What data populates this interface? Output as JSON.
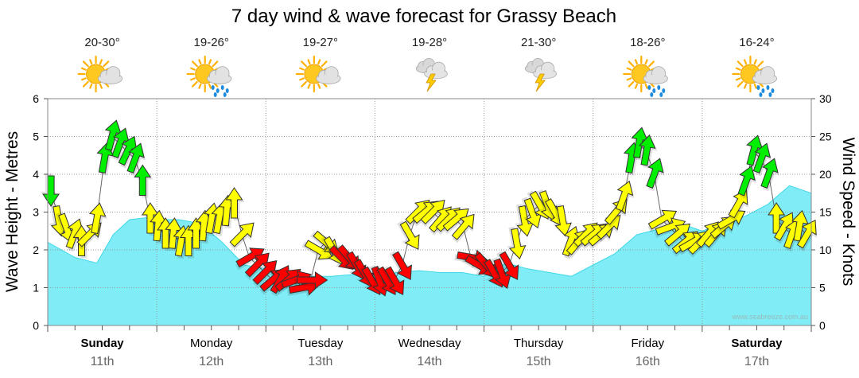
{
  "chart_data": {
    "type": "area",
    "title": "7 day wind & wave forecast for Grassy Beach",
    "y_left_label": "Wave Height - Metres",
    "y_right_label": "Wind Speed - Knots",
    "y_left_range": [
      0,
      6
    ],
    "y_right_range": [
      0,
      30
    ],
    "y_left_ticks": [
      "0",
      "1",
      "2",
      "3",
      "4",
      "5",
      "6"
    ],
    "y_right_ticks": [
      "0",
      "5",
      "10",
      "15",
      "20",
      "25",
      "30"
    ],
    "x_range_days": [
      0,
      7
    ],
    "days": [
      {
        "name": "Sunday",
        "date": "11th",
        "bold": true,
        "temp": "20-30°",
        "icon": "sun-cloud-icon"
      },
      {
        "name": "Monday",
        "date": "12th",
        "bold": false,
        "temp": "19-26°",
        "icon": "sun-rain-icon"
      },
      {
        "name": "Tuesday",
        "date": "13th",
        "bold": false,
        "temp": "19-27°",
        "icon": "sun-cloud-icon"
      },
      {
        "name": "Wednesday",
        "date": "14th",
        "bold": false,
        "temp": "19-28°",
        "icon": "storm-icon"
      },
      {
        "name": "Thursday",
        "date": "15th",
        "bold": false,
        "temp": "21-30°",
        "icon": "storm-icon"
      },
      {
        "name": "Friday",
        "date": "16th",
        "bold": false,
        "temp": "18-26°",
        "icon": "sun-rain-icon"
      },
      {
        "name": "Saturday",
        "date": "17th",
        "bold": true,
        "temp": "16-24°",
        "icon": "sun-rain-icon"
      }
    ],
    "wave_series": {
      "name": "Wave Height",
      "x_days": [
        0,
        0.25,
        0.45,
        0.6,
        0.75,
        0.9,
        1.0,
        1.2,
        1.4,
        1.6,
        1.8,
        2.0,
        2.2,
        2.4,
        2.6,
        2.8,
        3.0,
        3.2,
        3.4,
        3.6,
        3.8,
        4.0,
        4.2,
        4.4,
        4.6,
        4.8,
        5.0,
        5.2,
        5.4,
        5.6,
        5.8,
        6.0,
        6.2,
        6.4,
        6.6,
        6.8,
        7.0
      ],
      "y_metres": [
        2.2,
        1.8,
        1.65,
        2.4,
        2.8,
        2.85,
        2.8,
        2.8,
        2.7,
        2.2,
        1.6,
        1.5,
        1.4,
        1.3,
        1.3,
        1.35,
        1.3,
        1.4,
        1.45,
        1.4,
        1.4,
        1.3,
        1.65,
        1.5,
        1.4,
        1.3,
        1.6,
        1.9,
        2.4,
        2.55,
        2.7,
        2.5,
        2.7,
        2.9,
        3.2,
        3.7,
        3.5
      ]
    },
    "wind_series": {
      "name": "Wind Speed",
      "x_days": [
        0.03,
        0.1,
        0.17,
        0.24,
        0.31,
        0.38,
        0.45,
        0.52,
        0.59,
        0.66,
        0.73,
        0.8,
        0.87,
        0.94,
        1.01,
        1.08,
        1.15,
        1.22,
        1.29,
        1.36,
        1.43,
        1.5,
        1.57,
        1.64,
        1.71,
        1.78,
        1.85,
        1.92,
        1.99,
        2.06,
        2.13,
        2.2,
        2.27,
        2.34,
        2.41,
        2.48,
        2.55,
        2.62,
        2.69,
        2.76,
        2.83,
        2.9,
        2.97,
        3.04,
        3.11,
        3.18,
        3.25,
        3.32,
        3.39,
        3.46,
        3.53,
        3.6,
        3.67,
        3.74,
        3.81,
        3.88,
        3.95,
        4.02,
        4.09,
        4.16,
        4.23,
        4.3,
        4.37,
        4.44,
        4.51,
        4.58,
        4.65,
        4.72,
        4.79,
        4.86,
        4.93,
        5.0,
        5.07,
        5.14,
        5.21,
        5.28,
        5.35,
        5.42,
        5.49,
        5.56,
        5.63,
        5.7,
        5.77,
        5.84,
        5.91,
        5.98,
        6.05,
        6.12,
        6.19,
        6.26,
        6.33,
        6.4,
        6.47,
        6.54,
        6.61,
        6.68,
        6.75,
        6.82,
        6.89,
        6.96
      ],
      "y_knots": [
        18,
        14,
        13,
        12,
        11,
        12,
        14,
        22,
        25,
        24,
        23,
        22,
        19,
        14,
        13,
        12,
        12,
        11,
        11,
        12,
        13,
        14,
        14,
        15,
        16,
        12,
        9,
        8,
        7,
        6,
        6,
        6,
        6,
        5,
        6,
        10,
        11,
        10,
        9,
        9,
        8,
        7,
        6,
        6,
        6,
        6,
        8,
        12,
        15,
        15,
        15,
        14,
        14,
        14,
        13,
        9,
        8,
        8,
        7,
        7,
        8,
        11,
        14,
        15,
        16,
        16,
        15,
        14,
        11,
        11,
        12,
        12,
        12,
        13,
        15,
        17,
        22,
        24,
        23,
        20,
        14,
        13,
        12,
        11,
        11,
        11,
        12,
        12,
        13,
        14,
        16,
        19,
        23,
        22,
        20,
        14,
        13,
        12,
        13,
        12
      ],
      "direction_deg": [
        180,
        170,
        160,
        20,
        0,
        45,
        10,
        10,
        15,
        20,
        25,
        20,
        0,
        0,
        5,
        0,
        5,
        10,
        0,
        0,
        5,
        10,
        10,
        5,
        0,
        45,
        60,
        45,
        45,
        50,
        30,
        50,
        70,
        80,
        90,
        120,
        130,
        150,
        135,
        140,
        150,
        150,
        150,
        160,
        150,
        150,
        150,
        150,
        45,
        50,
        45,
        40,
        45,
        50,
        40,
        100,
        120,
        140,
        150,
        160,
        150,
        170,
        170,
        160,
        150,
        160,
        150,
        170,
        20,
        40,
        45,
        50,
        50,
        45,
        40,
        20,
        10,
        10,
        10,
        20,
        60,
        70,
        50,
        50,
        60,
        45,
        40,
        40,
        50,
        60,
        30,
        20,
        15,
        20,
        20,
        0,
        30,
        20,
        10,
        30
      ],
      "color_bands": [
        {
          "max_knots": 10,
          "color": "#ff0000"
        },
        {
          "max_knots": 18,
          "color": "#ffff00"
        },
        {
          "max_knots": 30,
          "color": "#00ee00"
        }
      ]
    },
    "wave_color": "#80ecf5",
    "wave_edge_color": "#40d8e8",
    "grid": true,
    "credit": "www.seabreeze.com.au"
  }
}
